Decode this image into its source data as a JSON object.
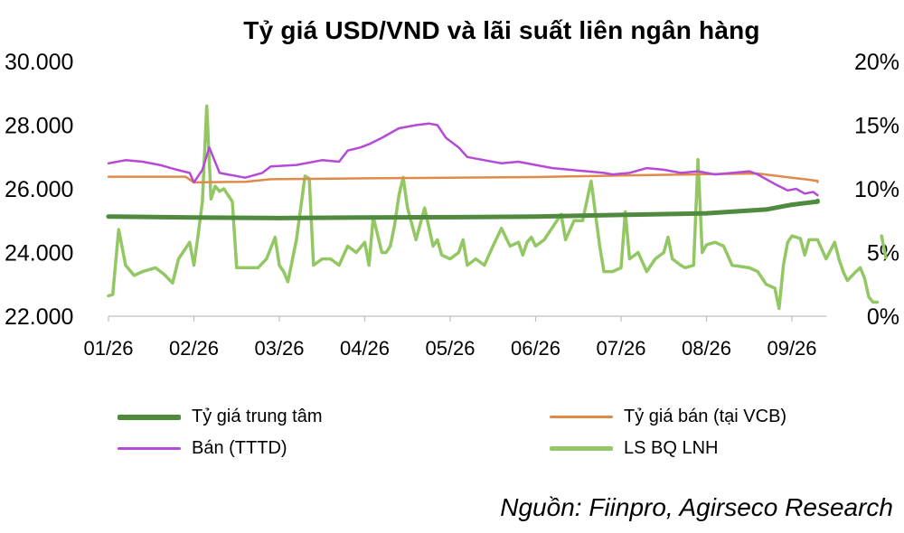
{
  "chart_data": {
    "type": "line",
    "title": "Tỷ giá USD/VND và lãi suất liên ngân hàng",
    "x_ticks": [
      "01/26",
      "02/26",
      "03/26",
      "04/26",
      "05/26",
      "06/26",
      "07/26",
      "08/26",
      "09/26"
    ],
    "y_left": {
      "ticks": [
        "22.000",
        "24.000",
        "26.000",
        "28.000",
        "30.000"
      ],
      "range": [
        22000,
        30000
      ]
    },
    "y_right": {
      "ticks": [
        "0%",
        "5%",
        "10%",
        "15%",
        "20%"
      ],
      "range": [
        0,
        20
      ]
    },
    "series": [
      {
        "name": "Tỷ giá trung tâm",
        "axis": "left",
        "color": "#4f8a3e",
        "points": [
          [
            0.0,
            25130
          ],
          [
            1.0,
            25100
          ],
          [
            2.0,
            25080
          ],
          [
            3.0,
            25100
          ],
          [
            4.0,
            25110
          ],
          [
            5.0,
            25130
          ],
          [
            6.0,
            25180
          ],
          [
            7.0,
            25230
          ],
          [
            7.7,
            25350
          ],
          [
            8.0,
            25500
          ],
          [
            8.3,
            25600
          ],
          [
            8.3,
            25620
          ]
        ]
      },
      {
        "name": "Tỷ giá bán (tại VCB)",
        "axis": "left",
        "color": "#e08a4a",
        "points": [
          [
            0.0,
            26380
          ],
          [
            0.9,
            26380
          ],
          [
            1.0,
            26200
          ],
          [
            1.6,
            26220
          ],
          [
            1.9,
            26300
          ],
          [
            3.0,
            26330
          ],
          [
            4.0,
            26350
          ],
          [
            5.0,
            26370
          ],
          [
            6.0,
            26420
          ],
          [
            7.0,
            26460
          ],
          [
            7.6,
            26480
          ],
          [
            8.0,
            26350
          ],
          [
            8.3,
            26250
          ],
          [
            8.3,
            26210
          ]
        ]
      },
      {
        "name": "Bán (TTTD)",
        "axis": "left",
        "color": "#b44ad6",
        "points": [
          [
            0.0,
            26800
          ],
          [
            0.2,
            26900
          ],
          [
            0.4,
            26850
          ],
          [
            0.6,
            26750
          ],
          [
            0.8,
            26600
          ],
          [
            0.95,
            26500
          ],
          [
            1.0,
            26200
          ],
          [
            1.1,
            26600
          ],
          [
            1.18,
            27300
          ],
          [
            1.3,
            26500
          ],
          [
            1.6,
            26350
          ],
          [
            1.8,
            26500
          ],
          [
            1.9,
            26700
          ],
          [
            2.2,
            26750
          ],
          [
            2.5,
            26900
          ],
          [
            2.7,
            26850
          ],
          [
            2.8,
            27200
          ],
          [
            2.95,
            27300
          ],
          [
            3.05,
            27400
          ],
          [
            3.2,
            27600
          ],
          [
            3.4,
            27900
          ],
          [
            3.6,
            28000
          ],
          [
            3.75,
            28050
          ],
          [
            3.85,
            28000
          ],
          [
            3.95,
            27600
          ],
          [
            4.1,
            27300
          ],
          [
            4.2,
            27000
          ],
          [
            4.4,
            26900
          ],
          [
            4.6,
            26800
          ],
          [
            4.8,
            26850
          ],
          [
            5.0,
            26750
          ],
          [
            5.2,
            26650
          ],
          [
            5.4,
            26600
          ],
          [
            5.6,
            26550
          ],
          [
            5.8,
            26500
          ],
          [
            5.9,
            26450
          ],
          [
            6.1,
            26500
          ],
          [
            6.3,
            26650
          ],
          [
            6.5,
            26600
          ],
          [
            6.6,
            26550
          ],
          [
            6.7,
            26500
          ],
          [
            6.9,
            26550
          ],
          [
            7.1,
            26450
          ],
          [
            7.3,
            26500
          ],
          [
            7.5,
            26550
          ],
          [
            7.6,
            26450
          ],
          [
            7.8,
            26150
          ],
          [
            7.95,
            25950
          ],
          [
            8.05,
            26000
          ],
          [
            8.15,
            25850
          ],
          [
            8.25,
            25900
          ],
          [
            8.3,
            25800
          ]
        ]
      },
      {
        "name": "LS BQ LNH",
        "axis": "right",
        "color": "#92c763",
        "points": [
          [
            0.0,
            1.6
          ],
          [
            0.05,
            1.7
          ],
          [
            0.12,
            6.8
          ],
          [
            0.2,
            4.0
          ],
          [
            0.3,
            3.2
          ],
          [
            0.4,
            3.5
          ],
          [
            0.55,
            3.8
          ],
          [
            0.65,
            3.3
          ],
          [
            0.75,
            2.6
          ],
          [
            0.82,
            4.5
          ],
          [
            0.95,
            5.8
          ],
          [
            1.0,
            4.0
          ],
          [
            1.05,
            6.4
          ],
          [
            1.1,
            9.0
          ],
          [
            1.15,
            16.5
          ],
          [
            1.2,
            9.2
          ],
          [
            1.25,
            10.2
          ],
          [
            1.3,
            9.8
          ],
          [
            1.35,
            10.0
          ],
          [
            1.45,
            9.0
          ],
          [
            1.5,
            3.8
          ],
          [
            1.6,
            3.8
          ],
          [
            1.75,
            3.8
          ],
          [
            1.85,
            4.5
          ],
          [
            1.95,
            6.2
          ],
          [
            2.0,
            4.0
          ],
          [
            2.05,
            3.5
          ],
          [
            2.1,
            2.7
          ],
          [
            2.2,
            6.0
          ],
          [
            2.3,
            11.0
          ],
          [
            2.35,
            10.8
          ],
          [
            2.4,
            4.0
          ],
          [
            2.5,
            4.5
          ],
          [
            2.6,
            4.5
          ],
          [
            2.7,
            4.0
          ],
          [
            2.8,
            5.5
          ],
          [
            2.9,
            5.0
          ],
          [
            3.0,
            5.8
          ],
          [
            3.05,
            4.0
          ],
          [
            3.1,
            7.8
          ],
          [
            3.2,
            5.0
          ],
          [
            3.25,
            5.0
          ],
          [
            3.3,
            5.5
          ],
          [
            3.35,
            7.2
          ],
          [
            3.4,
            9.5
          ],
          [
            3.45,
            10.9
          ],
          [
            3.5,
            8.5
          ],
          [
            3.6,
            6.0
          ],
          [
            3.7,
            8.5
          ],
          [
            3.8,
            5.5
          ],
          [
            3.85,
            6.0
          ],
          [
            3.9,
            4.8
          ],
          [
            4.0,
            4.5
          ],
          [
            4.1,
            5.0
          ],
          [
            4.15,
            6.0
          ],
          [
            4.2,
            4.0
          ],
          [
            4.3,
            4.5
          ],
          [
            4.4,
            4.0
          ],
          [
            4.5,
            5.5
          ],
          [
            4.6,
            6.9
          ],
          [
            4.7,
            5.5
          ],
          [
            4.8,
            5.8
          ],
          [
            4.85,
            4.8
          ],
          [
            4.9,
            5.8
          ],
          [
            4.95,
            6.2
          ],
          [
            5.0,
            5.5
          ],
          [
            5.1,
            6.0
          ],
          [
            5.2,
            7.0
          ],
          [
            5.3,
            8.0
          ],
          [
            5.35,
            6.0
          ],
          [
            5.45,
            7.5
          ],
          [
            5.55,
            7.5
          ],
          [
            5.65,
            10.6
          ],
          [
            5.75,
            5.5
          ],
          [
            5.8,
            3.5
          ],
          [
            5.9,
            3.5
          ],
          [
            6.0,
            3.8
          ],
          [
            6.05,
            8.2
          ],
          [
            6.1,
            4.5
          ],
          [
            6.2,
            5.0
          ],
          [
            6.3,
            3.5
          ],
          [
            6.35,
            4.0
          ],
          [
            6.4,
            4.5
          ],
          [
            6.5,
            5.0
          ],
          [
            6.55,
            6.2
          ],
          [
            6.6,
            4.5
          ],
          [
            6.7,
            4.0
          ],
          [
            6.75,
            3.8
          ],
          [
            6.85,
            4.0
          ],
          [
            6.9,
            12.3
          ],
          [
            6.95,
            5.0
          ],
          [
            7.0,
            5.6
          ],
          [
            7.1,
            5.8
          ],
          [
            7.2,
            5.5
          ],
          [
            7.3,
            4.0
          ],
          [
            7.5,
            3.8
          ],
          [
            7.6,
            3.5
          ],
          [
            7.7,
            2.5
          ],
          [
            7.8,
            2.2
          ],
          [
            7.85,
            0.6
          ],
          [
            7.9,
            4.0
          ],
          [
            7.95,
            5.8
          ],
          [
            8.0,
            6.3
          ],
          [
            8.05,
            6.2
          ],
          [
            8.1,
            6.1
          ],
          [
            8.15,
            4.8
          ],
          [
            8.2,
            6.0
          ],
          [
            8.3,
            6.0
          ],
          [
            8.4,
            4.5
          ],
          [
            8.5,
            5.8
          ],
          [
            8.55,
            4.5
          ],
          [
            8.6,
            3.5
          ],
          [
            8.65,
            2.8
          ],
          [
            8.75,
            3.5
          ],
          [
            8.8,
            3.8
          ],
          [
            8.85,
            3.0
          ],
          [
            8.9,
            1.5
          ],
          [
            8.95,
            1.1
          ],
          [
            9.0,
            1.1
          ]
        ]
      }
    ],
    "extra_segment": {
      "series": "LS BQ LNH",
      "points": [
        [
          9.05,
          6.3
        ],
        [
          9.1,
          4.6
        ]
      ]
    },
    "grid": false,
    "legend_placement": "bottom"
  },
  "source": "Nguồn: Fiinpro, Agirseco Research"
}
